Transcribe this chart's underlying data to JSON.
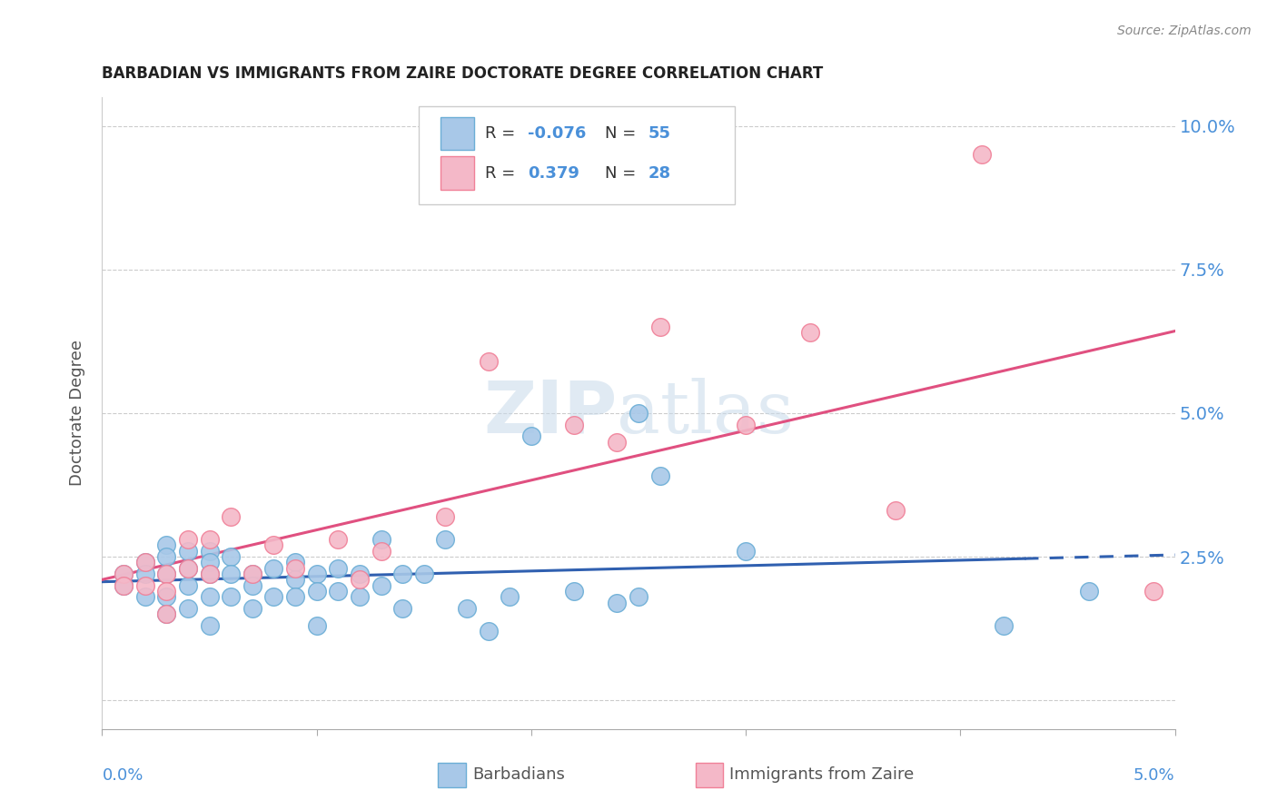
{
  "title": "BARBADIAN VS IMMIGRANTS FROM ZAIRE DOCTORATE DEGREE CORRELATION CHART",
  "source": "Source: ZipAtlas.com",
  "ylabel": "Doctorate Degree",
  "yticks": [
    0.0,
    0.025,
    0.05,
    0.075,
    0.1
  ],
  "ytick_labels": [
    "",
    "2.5%",
    "5.0%",
    "7.5%",
    "10.0%"
  ],
  "xlim": [
    0.0,
    0.05
  ],
  "ylim": [
    -0.005,
    0.105
  ],
  "blue_color": "#a8c8e8",
  "blue_edge": "#6baed6",
  "pink_color": "#f4b8c8",
  "pink_edge": "#f08098",
  "line_blue": "#3060b0",
  "line_pink": "#e05080",
  "blue_scatter_x": [
    0.001,
    0.001,
    0.002,
    0.002,
    0.002,
    0.003,
    0.003,
    0.003,
    0.003,
    0.003,
    0.004,
    0.004,
    0.004,
    0.004,
    0.005,
    0.005,
    0.005,
    0.005,
    0.005,
    0.006,
    0.006,
    0.006,
    0.007,
    0.007,
    0.007,
    0.008,
    0.008,
    0.009,
    0.009,
    0.009,
    0.01,
    0.01,
    0.01,
    0.011,
    0.011,
    0.012,
    0.012,
    0.013,
    0.013,
    0.014,
    0.014,
    0.015,
    0.016,
    0.017,
    0.018,
    0.019,
    0.02,
    0.022,
    0.024,
    0.025,
    0.025,
    0.026,
    0.03,
    0.042,
    0.046
  ],
  "blue_scatter_y": [
    0.022,
    0.02,
    0.024,
    0.022,
    0.018,
    0.027,
    0.025,
    0.022,
    0.018,
    0.015,
    0.026,
    0.023,
    0.02,
    0.016,
    0.026,
    0.024,
    0.022,
    0.018,
    0.013,
    0.025,
    0.022,
    0.018,
    0.022,
    0.02,
    0.016,
    0.023,
    0.018,
    0.024,
    0.021,
    0.018,
    0.022,
    0.019,
    0.013,
    0.023,
    0.019,
    0.022,
    0.018,
    0.028,
    0.02,
    0.022,
    0.016,
    0.022,
    0.028,
    0.016,
    0.012,
    0.018,
    0.046,
    0.019,
    0.017,
    0.05,
    0.018,
    0.039,
    0.026,
    0.013,
    0.019
  ],
  "pink_scatter_x": [
    0.001,
    0.001,
    0.002,
    0.002,
    0.003,
    0.003,
    0.003,
    0.004,
    0.004,
    0.005,
    0.005,
    0.006,
    0.007,
    0.008,
    0.009,
    0.011,
    0.012,
    0.013,
    0.016,
    0.018,
    0.022,
    0.024,
    0.026,
    0.03,
    0.033,
    0.037,
    0.041,
    0.049
  ],
  "pink_scatter_y": [
    0.022,
    0.02,
    0.024,
    0.02,
    0.022,
    0.019,
    0.015,
    0.028,
    0.023,
    0.028,
    0.022,
    0.032,
    0.022,
    0.027,
    0.023,
    0.028,
    0.021,
    0.026,
    0.032,
    0.059,
    0.048,
    0.045,
    0.065,
    0.048,
    0.064,
    0.033,
    0.095,
    0.019
  ],
  "trend_blue_x0": 0.0,
  "trend_blue_x1": 0.05,
  "trend_blue_solid_end": 0.043,
  "trend_pink_x0": 0.0,
  "trend_pink_x1": 0.05
}
